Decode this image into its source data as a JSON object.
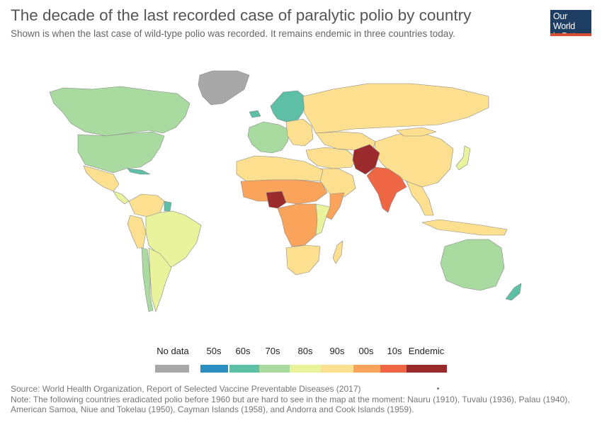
{
  "title": "The decade of the last recorded case of paralytic polio by country",
  "subtitle": "Shown is when the last case of wild-type polio was recorded. It remains endemic in three countries today.",
  "logo": {
    "line1": "Our World",
    "line2": "in Data"
  },
  "colors": {
    "no_data": "#a8a8a8",
    "50s": "#2c8fc2",
    "60s": "#5dbfa5",
    "70s": "#a9dba0",
    "80s": "#e8f39c",
    "90s": "#fde08f",
    "00s": "#f9a45a",
    "10s": "#ee6643",
    "endemic": "#9a2a2b",
    "border": "#888888",
    "ocean": "#ffffff"
  },
  "legend": [
    {
      "label": "No data",
      "color_key": "no_data"
    },
    {
      "label": "50s",
      "color_key": "50s"
    },
    {
      "label": "60s",
      "color_key": "60s"
    },
    {
      "label": "70s",
      "color_key": "70s"
    },
    {
      "label": "80s",
      "color_key": "80s"
    },
    {
      "label": "90s",
      "color_key": "90s"
    },
    {
      "label": "00s",
      "color_key": "00s"
    },
    {
      "label": "10s",
      "color_key": "10s"
    },
    {
      "label": "Endemic",
      "color_key": "endemic"
    }
  ],
  "footer": {
    "source": "Source: World Health Organization, Report of Selected Vaccine Preventable Diseases (2017)",
    "note": "Note: The following countries eradicated polio before 1960 but are hard to see in the map at the moment: Nauru (1910), Tuvalu (1936), Palau (1940), American Samoa, Niue and Tokelau (1950), Cayman Islands (1958), and Andorra and Cook Islands (1959)."
  },
  "map_regions": [
    {
      "region": "Greenland",
      "category": "no_data"
    },
    {
      "region": "Canada",
      "category": "70s"
    },
    {
      "region": "United States",
      "category": "70s"
    },
    {
      "region": "Mexico",
      "category": "90s"
    },
    {
      "region": "Cuba",
      "category": "60s"
    },
    {
      "region": "Central America",
      "category": "80s"
    },
    {
      "region": "Colombia / Venezuela",
      "category": "90s"
    },
    {
      "region": "Guyana",
      "category": "60s"
    },
    {
      "region": "Peru",
      "category": "90s"
    },
    {
      "region": "Brazil",
      "category": "80s"
    },
    {
      "region": "Chile",
      "category": "70s"
    },
    {
      "region": "Argentina",
      "category": "80s"
    },
    {
      "region": "Iceland",
      "category": "60s"
    },
    {
      "region": "Scandinavia",
      "category": "60s"
    },
    {
      "region": "Western Europe",
      "category": "70s"
    },
    {
      "region": "Eastern Europe",
      "category": "90s"
    },
    {
      "region": "Russia",
      "category": "90s"
    },
    {
      "region": "Central Asia",
      "category": "90s"
    },
    {
      "region": "China",
      "category": "90s"
    },
    {
      "region": "Mongolia",
      "category": "90s"
    },
    {
      "region": "Japan",
      "category": "80s"
    },
    {
      "region": "Middle East",
      "category": "90s"
    },
    {
      "region": "Saudi Arabia",
      "category": "90s"
    },
    {
      "region": "Pakistan / Afghanistan",
      "category": "endemic"
    },
    {
      "region": "India",
      "category": "10s"
    },
    {
      "region": "Southeast Asia",
      "category": "90s"
    },
    {
      "region": "Indonesia",
      "category": "90s"
    },
    {
      "region": "Australia",
      "category": "70s"
    },
    {
      "region": "New Zealand",
      "category": "60s"
    },
    {
      "region": "North Africa",
      "category": "90s"
    },
    {
      "region": "Sahel",
      "category": "00s"
    },
    {
      "region": "Nigeria",
      "category": "endemic"
    },
    {
      "region": "Central Africa",
      "category": "00s"
    },
    {
      "region": "Somalia",
      "category": "00s"
    },
    {
      "region": "East Africa",
      "category": "80s"
    },
    {
      "region": "Southern Africa",
      "category": "90s"
    },
    {
      "region": "Madagascar",
      "category": "90s"
    }
  ]
}
